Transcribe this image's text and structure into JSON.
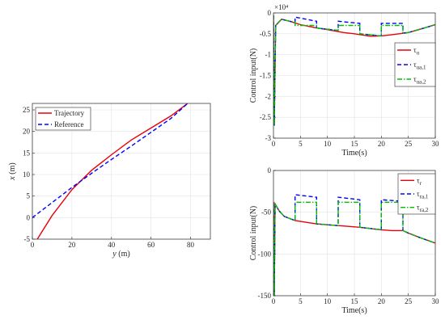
{
  "chart_data": [
    {
      "type": "line",
      "xlabel": "y (m)",
      "ylabel": "x (m)",
      "xlim": [
        0,
        90
      ],
      "ylim": [
        -5,
        26.5
      ],
      "xticks": [
        "0",
        "20",
        "40",
        "60",
        "80"
      ],
      "yticks": [
        "-5",
        "0",
        "5",
        "10",
        "15",
        "20",
        "25"
      ],
      "grid": true,
      "legend_position": "top-left",
      "series": [
        {
          "name": "Trajectory",
          "color": "#e8000b",
          "style": "solid",
          "points": [
            [
              2.5,
              -5
            ],
            [
              10,
              0.5
            ],
            [
              20,
              6.5
            ],
            [
              30,
              11
            ],
            [
              40,
              14.6
            ],
            [
              50,
              18
            ],
            [
              60,
              20.8
            ],
            [
              70,
              23.6
            ],
            [
              78.5,
              26.5
            ]
          ]
        },
        {
          "name": "Reference",
          "color": "#0000ff",
          "style": "dashed",
          "points": [
            [
              0,
              0
            ],
            [
              10,
              3.5
            ],
            [
              20,
              7
            ],
            [
              30,
              10.3
            ],
            [
              40,
              13.5
            ],
            [
              50,
              16.6
            ],
            [
              60,
              19.8
            ],
            [
              70,
              23
            ],
            [
              78.5,
              26.5
            ]
          ]
        }
      ]
    },
    {
      "type": "line",
      "xlabel": "Time(s)",
      "ylabel": "Control input(N)",
      "exponent_label": "×10⁴",
      "xlim": [
        0,
        30
      ],
      "ylim": [
        -3,
        0
      ],
      "xticks": [
        "0",
        "5",
        "10",
        "15",
        "20",
        "25",
        "30"
      ],
      "yticks": [
        "0",
        "-0.5",
        "-1",
        "-1.5",
        "-2",
        "-2.5",
        "-3"
      ],
      "grid": true,
      "legend_position": "right",
      "series": [
        {
          "name": "τ_u",
          "color": "#e8000b",
          "style": "solid",
          "points": [
            [
              0,
              -0.05
            ],
            [
              0.15,
              -2.7
            ],
            [
              0.4,
              -0.3
            ],
            [
              1.5,
              -0.15
            ],
            [
              3,
              -0.2
            ],
            [
              5,
              -0.28
            ],
            [
              8,
              -0.36
            ],
            [
              10,
              -0.4
            ],
            [
              13,
              -0.47
            ],
            [
              15,
              -0.5
            ],
            [
              18,
              -0.56
            ],
            [
              20,
              -0.55
            ],
            [
              22,
              -0.52
            ],
            [
              25,
              -0.47
            ],
            [
              28,
              -0.36
            ],
            [
              30,
              -0.28
            ]
          ]
        },
        {
          "name": "τ_ua,1",
          "color": "#0000ff",
          "style": "dashed",
          "points": [
            [
              0,
              -0.05
            ],
            [
              0.15,
              -2.7
            ],
            [
              0.4,
              -0.3
            ],
            [
              1.5,
              -0.15
            ],
            [
              3,
              -0.2
            ],
            [
              4,
              -0.22
            ],
            [
              4,
              -0.1
            ],
            [
              8,
              -0.2
            ],
            [
              8,
              -0.36
            ],
            [
              12,
              -0.42
            ],
            [
              12,
              -0.2
            ],
            [
              16,
              -0.25
            ],
            [
              16,
              -0.5
            ],
            [
              20,
              -0.55
            ],
            [
              20,
              -0.25
            ],
            [
              24,
              -0.25
            ],
            [
              24,
              -0.48
            ],
            [
              25,
              -0.47
            ],
            [
              28,
              -0.36
            ],
            [
              30,
              -0.28
            ]
          ]
        },
        {
          "name": "τ_ua,2",
          "color": "#00c000",
          "style": "dashdot",
          "points": [
            [
              0,
              -0.05
            ],
            [
              0.15,
              -2.7
            ],
            [
              0.4,
              -0.3
            ],
            [
              1.5,
              -0.15
            ],
            [
              3,
              -0.2
            ],
            [
              4,
              -0.22
            ],
            [
              4,
              -0.3
            ],
            [
              8,
              -0.3
            ],
            [
              8,
              -0.36
            ],
            [
              12,
              -0.42
            ],
            [
              12,
              -0.3
            ],
            [
              16,
              -0.3
            ],
            [
              16,
              -0.5
            ],
            [
              20,
              -0.55
            ],
            [
              20,
              -0.3
            ],
            [
              24,
              -0.3
            ],
            [
              24,
              -0.48
            ],
            [
              25,
              -0.47
            ],
            [
              28,
              -0.36
            ],
            [
              30,
              -0.28
            ]
          ]
        }
      ]
    },
    {
      "type": "line",
      "xlabel": "Time(s)",
      "ylabel": "Control input(N)",
      "xlim": [
        0,
        30
      ],
      "ylim": [
        -150,
        0
      ],
      "xticks": [
        "0",
        "5",
        "10",
        "15",
        "20",
        "25",
        "30"
      ],
      "yticks": [
        "0",
        "-50",
        "-100",
        "-150"
      ],
      "grid": true,
      "legend_position": "top-right",
      "series": [
        {
          "name": "τ_r",
          "color": "#e8000b",
          "style": "solid",
          "points": [
            [
              0,
              -38
            ],
            [
              0.15,
              -150
            ],
            [
              0.3,
              -40
            ],
            [
              1,
              -48
            ],
            [
              2,
              -55
            ],
            [
              4,
              -60
            ],
            [
              6,
              -62
            ],
            [
              8,
              -64
            ],
            [
              10,
              -65
            ],
            [
              12,
              -66
            ],
            [
              16,
              -68
            ],
            [
              20,
              -71
            ],
            [
              22,
              -72
            ],
            [
              24,
              -72
            ],
            [
              25,
              -75
            ],
            [
              27,
              -80
            ],
            [
              30,
              -87
            ]
          ]
        },
        {
          "name": "τ_ra,1",
          "color": "#0000ff",
          "style": "dashed",
          "points": [
            [
              0,
              -38
            ],
            [
              0.15,
              -150
            ],
            [
              0.3,
              -40
            ],
            [
              1,
              -48
            ],
            [
              2,
              -55
            ],
            [
              4,
              -60
            ],
            [
              4,
              -29
            ],
            [
              8,
              -32
            ],
            [
              8,
              -64
            ],
            [
              10,
              -65
            ],
            [
              12,
              -66
            ],
            [
              12,
              -32
            ],
            [
              16,
              -35
            ],
            [
              16,
              -68
            ],
            [
              20,
              -71
            ],
            [
              20,
              -35
            ],
            [
              24,
              -37
            ],
            [
              24,
              -72
            ],
            [
              25,
              -75
            ],
            [
              27,
              -80
            ],
            [
              30,
              -87
            ]
          ]
        },
        {
          "name": "τ_ra,2",
          "color": "#00c000",
          "style": "dashdot",
          "points": [
            [
              0,
              -38
            ],
            [
              0.15,
              -150
            ],
            [
              0.3,
              -40
            ],
            [
              1,
              -48
            ],
            [
              2,
              -55
            ],
            [
              4,
              -60
            ],
            [
              4,
              -38
            ],
            [
              8,
              -38
            ],
            [
              8,
              -64
            ],
            [
              10,
              -65
            ],
            [
              12,
              -66
            ],
            [
              12,
              -38
            ],
            [
              16,
              -38
            ],
            [
              16,
              -68
            ],
            [
              20,
              -71
            ],
            [
              20,
              -38
            ],
            [
              24,
              -38
            ],
            [
              24,
              -72
            ],
            [
              25,
              -75
            ],
            [
              27,
              -80
            ],
            [
              30,
              -87
            ]
          ]
        }
      ]
    }
  ]
}
